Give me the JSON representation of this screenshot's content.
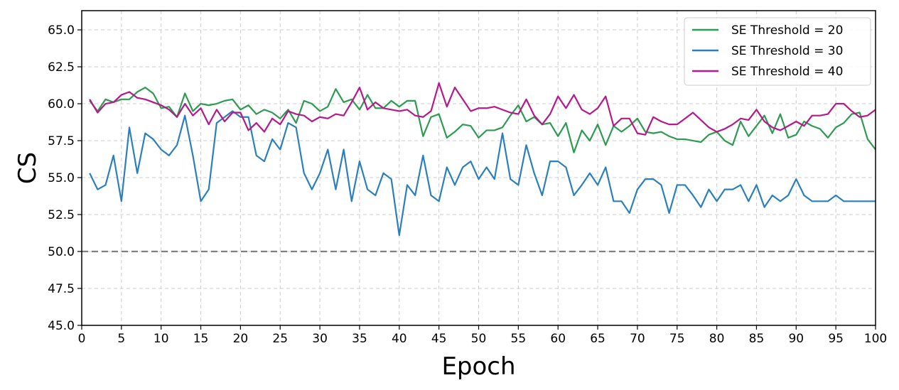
{
  "chart_data": {
    "type": "line",
    "title": "",
    "xlabel": "Epoch",
    "ylabel": "CS",
    "xlim": [
      0,
      100
    ],
    "ylim": [
      45.0,
      66.3
    ],
    "x_ticks": [
      0,
      5,
      10,
      15,
      20,
      25,
      30,
      35,
      40,
      45,
      50,
      55,
      60,
      65,
      70,
      75,
      80,
      85,
      90,
      95,
      100
    ],
    "y_ticks": [
      45.0,
      47.5,
      50.0,
      52.5,
      55.0,
      57.5,
      60.0,
      62.5,
      65.0
    ],
    "y_tick_labels": [
      "45.0",
      "47.5",
      "50.0",
      "52.5",
      "55.0",
      "57.5",
      "60.0",
      "62.5",
      "65.0"
    ],
    "grid": true,
    "legend_position": "top-right",
    "reference_line": {
      "y": 50.0,
      "style": "dashed",
      "color": "#808080"
    },
    "x": [
      1,
      2,
      3,
      4,
      5,
      6,
      7,
      8,
      9,
      10,
      11,
      12,
      13,
      14,
      15,
      16,
      17,
      18,
      19,
      20,
      21,
      22,
      23,
      24,
      25,
      26,
      27,
      28,
      29,
      30,
      31,
      32,
      33,
      34,
      35,
      36,
      37,
      38,
      39,
      40,
      41,
      42,
      43,
      44,
      45,
      46,
      47,
      48,
      49,
      50,
      51,
      52,
      53,
      54,
      55,
      56,
      57,
      58,
      59,
      60,
      61,
      62,
      63,
      64,
      65,
      66,
      67,
      68,
      69,
      70,
      71,
      72,
      73,
      74,
      75,
      76,
      77,
      78,
      79,
      80,
      81,
      82,
      83,
      84,
      85,
      86,
      87,
      88,
      89,
      90,
      91,
      92,
      93,
      94,
      95,
      96,
      97,
      98,
      99,
      100
    ],
    "series": [
      {
        "name": "SE Threshold = 20",
        "color": "#2e9a52",
        "values": [
          60.2,
          59.5,
          60.3,
          60.1,
          60.3,
          60.3,
          60.8,
          61.1,
          60.7,
          59.7,
          59.8,
          59.1,
          60.7,
          59.5,
          60.0,
          59.9,
          60.0,
          60.2,
          60.3,
          59.6,
          59.9,
          59.3,
          59.6,
          59.4,
          59.0,
          59.6,
          58.7,
          60.2,
          60.0,
          59.5,
          59.8,
          61.0,
          60.1,
          60.3,
          59.6,
          60.6,
          59.7,
          59.7,
          60.2,
          59.8,
          60.2,
          60.2,
          57.8,
          59.1,
          59.3,
          57.7,
          58.1,
          58.6,
          58.5,
          57.7,
          58.2,
          58.2,
          58.4,
          59.2,
          59.9,
          58.8,
          59.1,
          58.6,
          58.7,
          57.8,
          58.7,
          56.7,
          58.2,
          57.5,
          58.6,
          57.2,
          58.5,
          58.1,
          58.5,
          59.0,
          58.1,
          58.0,
          58.1,
          57.8,
          57.6,
          57.6,
          57.5,
          57.4,
          57.9,
          58.1,
          57.5,
          57.2,
          58.8,
          57.8,
          58.5,
          59.2,
          58.0,
          59.3,
          57.7,
          57.9,
          58.8,
          58.5,
          58.3,
          57.7,
          58.4,
          58.7,
          59.3,
          59.4,
          57.6,
          56.9
        ]
      },
      {
        "name": "SE Threshold = 30",
        "color": "#2c7fbd",
        "values": [
          55.3,
          54.2,
          54.5,
          56.5,
          53.4,
          58.4,
          55.3,
          58.0,
          57.6,
          56.9,
          56.5,
          57.2,
          59.2,
          56.5,
          53.4,
          54.2,
          58.7,
          59.1,
          59.5,
          59.1,
          59.1,
          56.5,
          56.1,
          57.6,
          56.9,
          58.7,
          58.4,
          55.3,
          54.2,
          55.3,
          56.9,
          54.2,
          56.9,
          53.4,
          56.1,
          54.2,
          53.8,
          55.3,
          54.9,
          51.1,
          54.5,
          53.8,
          56.5,
          53.8,
          53.4,
          55.7,
          54.5,
          55.7,
          56.1,
          54.9,
          55.7,
          54.9,
          58.0,
          54.9,
          54.5,
          57.2,
          55.3,
          53.8,
          56.1,
          56.1,
          55.7,
          53.8,
          54.5,
          55.3,
          54.5,
          55.7,
          53.4,
          53.4,
          52.6,
          54.2,
          54.9,
          54.9,
          54.5,
          52.6,
          54.5,
          54.5,
          53.8,
          53.0,
          54.2,
          53.4,
          54.2,
          54.2,
          54.5,
          53.4,
          54.5,
          53.0,
          53.8,
          53.4,
          53.8,
          54.9,
          53.8,
          53.4,
          53.4,
          53.4,
          53.8,
          53.4,
          53.4,
          53.4,
          53.4,
          53.4
        ]
      },
      {
        "name": "SE Threshold = 40",
        "color": "#b5198b",
        "values": [
          60.3,
          59.4,
          60.0,
          60.1,
          60.6,
          60.8,
          60.4,
          60.3,
          60.1,
          59.9,
          59.6,
          59.1,
          60.0,
          59.2,
          59.7,
          58.6,
          59.6,
          58.8,
          59.4,
          59.4,
          58.2,
          58.7,
          58.1,
          59.0,
          58.6,
          59.5,
          59.3,
          59.2,
          58.8,
          59.1,
          59.0,
          59.3,
          59.2,
          60.1,
          61.1,
          59.6,
          60.1,
          59.7,
          59.6,
          59.5,
          59.6,
          59.2,
          59.1,
          59.5,
          61.4,
          59.8,
          61.1,
          60.3,
          59.5,
          59.7,
          59.7,
          59.8,
          59.6,
          59.4,
          59.3,
          60.3,
          59.2,
          58.6,
          59.3,
          60.5,
          59.7,
          60.6,
          59.6,
          59.3,
          59.7,
          60.5,
          58.5,
          59.0,
          59.0,
          58.0,
          57.9,
          59.1,
          58.8,
          58.6,
          58.6,
          59.0,
          59.4,
          58.9,
          58.4,
          58.1,
          58.3,
          58.6,
          59.0,
          58.9,
          59.6,
          58.8,
          58.4,
          58.2,
          58.5,
          58.8,
          58.5,
          59.2,
          59.2,
          59.3,
          60.0,
          60.0,
          59.5,
          59.1,
          59.2,
          59.6
        ]
      }
    ]
  }
}
